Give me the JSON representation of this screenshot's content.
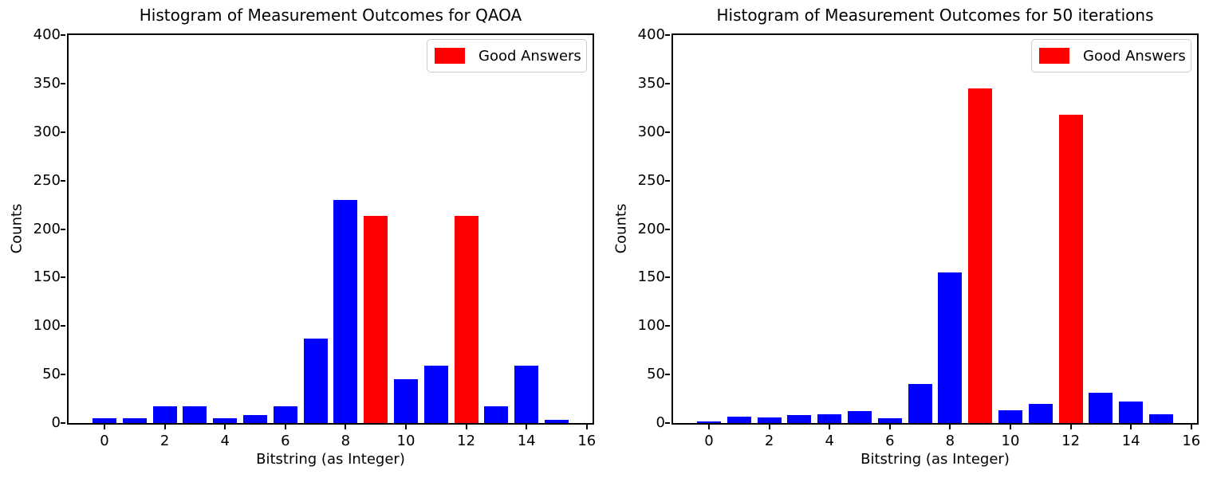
{
  "figure": {
    "background": "#ffffff",
    "colors": {
      "bar_blue": "#0000ff",
      "good_red": "#ff0000",
      "axis_black": "#000000",
      "legend_border": "#cccccc"
    }
  },
  "chart_data": [
    {
      "type": "bar",
      "title": "Histogram of Measurement Outcomes for QAOA",
      "xlabel": "Bitstring (as Integer)",
      "ylabel": "Counts",
      "legend": {
        "label": "Good Answers",
        "swatch_color": "#ff0000",
        "position": "upper right"
      },
      "categories": [
        0,
        1,
        2,
        3,
        4,
        5,
        6,
        7,
        8,
        9,
        10,
        11,
        12,
        13,
        14,
        15
      ],
      "values": [
        5,
        5,
        17,
        17,
        5,
        8,
        17,
        87,
        230,
        214,
        45,
        59,
        214,
        17,
        59,
        3
      ],
      "good_answer_x": [
        9,
        12
      ],
      "bar_color": "#0000ff",
      "good_color": "#ff0000",
      "bar_width": 0.8,
      "xlim": [
        -1.19,
        16.19
      ],
      "ylim": [
        0,
        400
      ],
      "xticks": [
        0,
        2,
        4,
        6,
        8,
        10,
        12,
        14,
        16
      ],
      "yticks": [
        0,
        50,
        100,
        150,
        200,
        250,
        300,
        350,
        400
      ],
      "grid": false
    },
    {
      "type": "bar",
      "title": "Histogram of Measurement Outcomes for 50 iterations",
      "xlabel": "Bitstring (as Integer)",
      "ylabel": "Counts",
      "legend": {
        "label": "Good Answers",
        "swatch_color": "#ff0000",
        "position": "upper right"
      },
      "categories": [
        0,
        1,
        2,
        3,
        4,
        5,
        6,
        7,
        8,
        9,
        10,
        11,
        12,
        13,
        14,
        15
      ],
      "values": [
        2,
        7,
        6,
        8,
        9,
        12,
        5,
        40,
        155,
        345,
        13,
        20,
        318,
        31,
        22,
        9
      ],
      "good_answer_x": [
        9,
        12
      ],
      "bar_color": "#0000ff",
      "good_color": "#ff0000",
      "bar_width": 0.8,
      "xlim": [
        -1.19,
        16.19
      ],
      "ylim": [
        0,
        400
      ],
      "xticks": [
        0,
        2,
        4,
        6,
        8,
        10,
        12,
        14,
        16
      ],
      "yticks": [
        0,
        50,
        100,
        150,
        200,
        250,
        300,
        350,
        400
      ],
      "grid": false
    }
  ]
}
